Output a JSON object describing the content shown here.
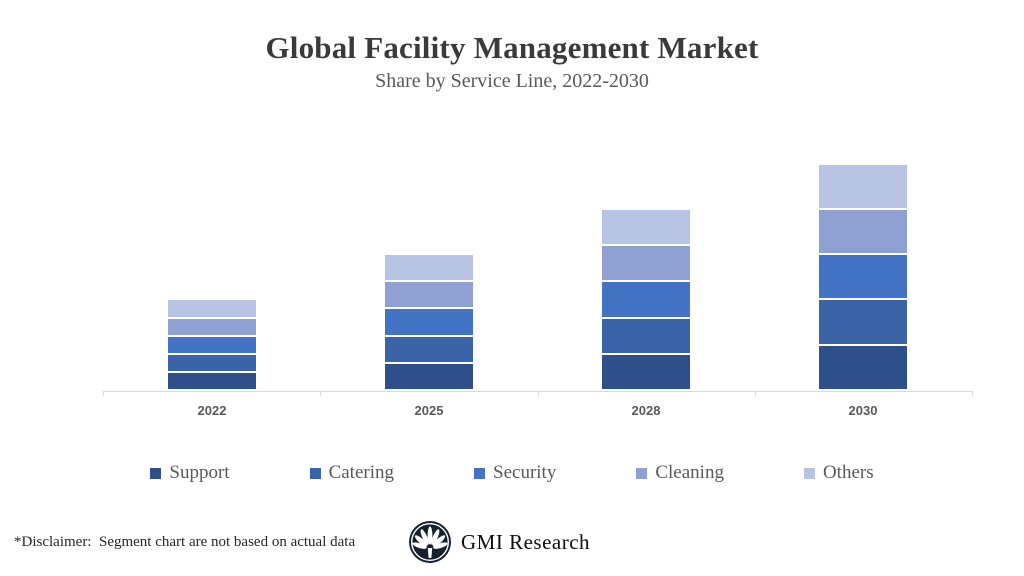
{
  "header": {
    "title": "Global Facility Management Market",
    "subtitle": "Share by Service Line, 2022-2030"
  },
  "chart_data": {
    "type": "bar",
    "stacked": true,
    "title": "Global Facility Management Market",
    "subtitle": "Share by Service Line, 2022-2030",
    "categories": [
      "2022",
      "2025",
      "2028",
      "2030"
    ],
    "series": [
      {
        "name": "Support",
        "color": "#2e4f89",
        "values": [
          4,
          6,
          8,
          10
        ]
      },
      {
        "name": "Catering",
        "color": "#3a63a8",
        "values": [
          4,
          6,
          8,
          10
        ]
      },
      {
        "name": "Security",
        "color": "#4273c5",
        "values": [
          4,
          6,
          8,
          10
        ]
      },
      {
        "name": "Cleaning",
        "color": "#8fa0d2",
        "values": [
          4,
          6,
          8,
          10
        ]
      },
      {
        "name": "Others",
        "color": "#b8c4e4",
        "values": [
          4,
          6,
          8,
          10
        ]
      }
    ],
    "totals": [
      20,
      30,
      40,
      50
    ],
    "xlabel": "",
    "ylabel": "",
    "ylim": [
      0,
      55
    ],
    "grid": false,
    "y_axis_visible": false,
    "legend_position": "bottom",
    "axis_color": "#d9d9d9",
    "segment_border_color": "#ffffff"
  },
  "footer": {
    "disclaimer": "*Disclaimer:  Segment chart are not based on actual data",
    "brand": "GMI Research"
  }
}
